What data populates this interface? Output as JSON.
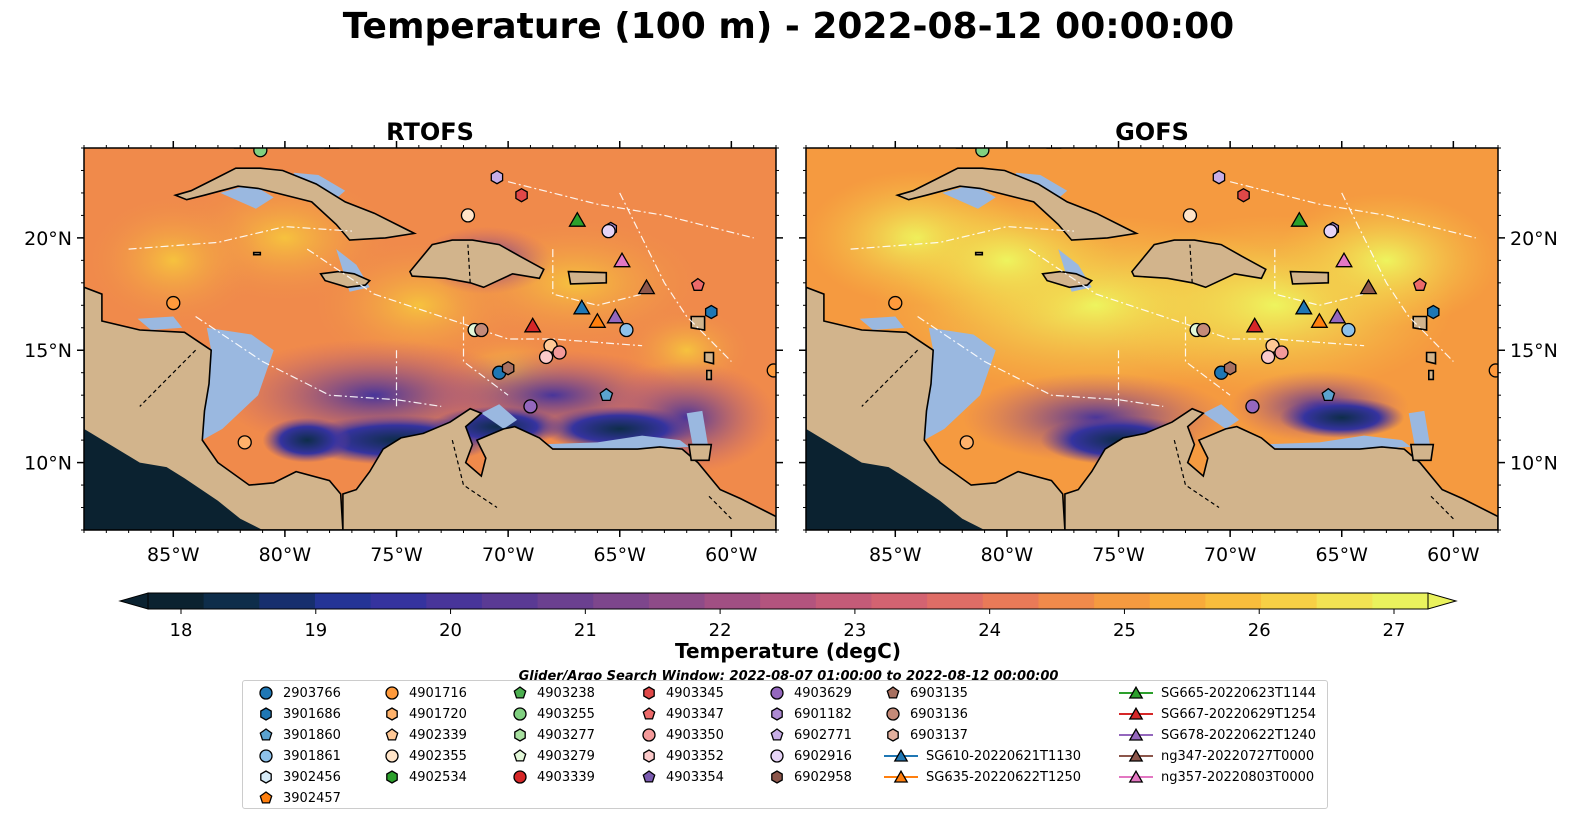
{
  "title": "Temperature (100 m) - 2022-08-12 00:00:00",
  "panels": [
    {
      "title": "RTOFS",
      "variant": "rtofs"
    },
    {
      "title": "GOFS",
      "variant": "gofs"
    }
  ],
  "map": {
    "lon_range": [
      -89,
      -58
    ],
    "lat_range": [
      7,
      24
    ],
    "lon_ticks": [
      "85°W",
      "80°W",
      "75°W",
      "70°W",
      "65°W",
      "60°W"
    ],
    "lon_tick_values": [
      -85,
      -80,
      -75,
      -70,
      -65,
      -60
    ],
    "lat_ticks": [
      "10°N",
      "15°N",
      "20°N"
    ],
    "lat_tick_values": [
      10,
      15,
      20
    ],
    "land_color": "#d2b48c",
    "shelf_color": "#9ab8e0"
  },
  "colorbar": {
    "label": "Temperature (degC)",
    "ticks": [
      "18",
      "19",
      "20",
      "21",
      "22",
      "23",
      "24",
      "25",
      "26",
      "27"
    ],
    "min": 18,
    "max": 27,
    "colors": [
      "#0b2230",
      "#0e2d4a",
      "#172f6e",
      "#243496",
      "#35339f",
      "#48359a",
      "#5a3a94",
      "#6b4090",
      "#7d468c",
      "#8e4b88",
      "#a14f83",
      "#b3547e",
      "#c45b78",
      "#d36371",
      "#df6d66",
      "#e97a58",
      "#f08a4b",
      "#f59a40",
      "#f8ab3a",
      "#f9bd3c",
      "#f7d045",
      "#f2e353",
      "#eaf25d"
    ]
  },
  "legend": {
    "title": "Glider/Argo Search Window: 2022-08-07 01:00:00 to 2022-08-12 00:00:00",
    "columns": [
      [
        {
          "label": "2903766",
          "marker": "circle",
          "color": "#1f77b4"
        },
        {
          "label": "3901686",
          "marker": "hexagon",
          "color": "#1f77b4"
        },
        {
          "label": "3901860",
          "marker": "pentagon",
          "color": "#5ba3d0"
        },
        {
          "label": "3901861",
          "marker": "circle",
          "color": "#8ec1ea"
        },
        {
          "label": "3902456",
          "marker": "hexagon",
          "color": "#d6ebf8"
        },
        {
          "label": "3902457",
          "marker": "pentagon",
          "color": "#ff7f0e"
        }
      ],
      [
        {
          "label": "4901716",
          "marker": "circle",
          "color": "#ff9a3c"
        },
        {
          "label": "4901720",
          "marker": "hexagon",
          "color": "#ffb26b"
        },
        {
          "label": "4902339",
          "marker": "pentagon",
          "color": "#ffc896"
        },
        {
          "label": "4902355",
          "marker": "circle",
          "color": "#ffe4c8"
        },
        {
          "label": "4902534",
          "marker": "hexagon",
          "color": "#2ca02c"
        }
      ],
      [
        {
          "label": "4903238",
          "marker": "pentagon",
          "color": "#4caf50"
        },
        {
          "label": "4903255",
          "marker": "circle",
          "color": "#80d080"
        },
        {
          "label": "4903277",
          "marker": "hexagon",
          "color": "#a8e0a0"
        },
        {
          "label": "4903279",
          "marker": "pentagon",
          "color": "#e2f7d8"
        },
        {
          "label": "4903339",
          "marker": "circle",
          "color": "#d62728"
        }
      ],
      [
        {
          "label": "4903345",
          "marker": "hexagon",
          "color": "#e04848"
        },
        {
          "label": "4903347",
          "marker": "pentagon",
          "color": "#ec6a6a"
        },
        {
          "label": "4903350",
          "marker": "circle",
          "color": "#f49a9a"
        },
        {
          "label": "4903352",
          "marker": "hexagon",
          "color": "#fbcaca"
        },
        {
          "label": "4903354",
          "marker": "pentagon",
          "color": "#7b5bb0"
        }
      ],
      [
        {
          "label": "4903629",
          "marker": "circle",
          "color": "#9467bd"
        },
        {
          "label": "6901182",
          "marker": "hexagon",
          "color": "#ad8ad2"
        },
        {
          "label": "6902771",
          "marker": "pentagon",
          "color": "#c8aee6"
        },
        {
          "label": "6902916",
          "marker": "circle",
          "color": "#e6d4f6"
        },
        {
          "label": "6902958",
          "marker": "hexagon",
          "color": "#8c564b"
        }
      ],
      [
        {
          "label": "6903135",
          "marker": "pentagon",
          "color": "#a87060"
        },
        {
          "label": "6903136",
          "marker": "circle",
          "color": "#c48a78"
        },
        {
          "label": "6903137",
          "marker": "hexagon",
          "color": "#e2b09e"
        },
        {
          "label": "SG610-20220621T1130",
          "marker": "triangle-line",
          "color": "#1f77b4"
        },
        {
          "label": "SG635-20220622T1250",
          "marker": "triangle-line",
          "color": "#ff7f0e"
        }
      ],
      [
        {
          "label": "SG665-20220623T1144",
          "marker": "triangle-line",
          "color": "#2ca02c"
        },
        {
          "label": "SG667-20220629T1254",
          "marker": "triangle-line",
          "color": "#d62728"
        },
        {
          "label": "SG678-20220622T1240",
          "marker": "triangle-line",
          "color": "#9467bd"
        },
        {
          "label": "ng347-20220727T0000",
          "marker": "triangle-line",
          "color": "#8c564b"
        },
        {
          "label": "ng357-20220803T0000",
          "marker": "triangle-line",
          "color": "#e377c2"
        }
      ]
    ]
  },
  "platforms": [
    {
      "lon": -85,
      "lat": 17.1,
      "marker": "circle",
      "color": "#ff9a3c"
    },
    {
      "lon": -81.8,
      "lat": 10.9,
      "marker": "circle",
      "color": "#ffb26b"
    },
    {
      "lon": -71.5,
      "lat": 15.9,
      "marker": "circle",
      "color": "#e2f7d8"
    },
    {
      "lon": -71.2,
      "lat": 15.9,
      "marker": "circle",
      "color": "#c48a78"
    },
    {
      "lon": -70.4,
      "lat": 14.0,
      "marker": "circle",
      "color": "#1f77b4"
    },
    {
      "lon": -70.0,
      "lat": 14.2,
      "marker": "hexagon",
      "color": "#a87060"
    },
    {
      "lon": -69.0,
      "lat": 12.5,
      "marker": "circle",
      "color": "#9467bd"
    },
    {
      "lon": -68.1,
      "lat": 15.2,
      "marker": "circle",
      "color": "#ffc896"
    },
    {
      "lon": -67.7,
      "lat": 14.9,
      "marker": "circle",
      "color": "#f49a9a"
    },
    {
      "lon": -68.3,
      "lat": 14.7,
      "marker": "circle",
      "color": "#fbcaca"
    },
    {
      "lon": -70.5,
      "lat": 22.7,
      "marker": "hexagon",
      "color": "#c8aee6"
    },
    {
      "lon": -69.4,
      "lat": 21.9,
      "marker": "hexagon",
      "color": "#e04848"
    },
    {
      "lon": -71.8,
      "lat": 21.0,
      "marker": "circle",
      "color": "#ffe4c8"
    },
    {
      "lon": -65.4,
      "lat": 20.4,
      "marker": "hexagon",
      "color": "#ad8ad2"
    },
    {
      "lon": -65.5,
      "lat": 20.3,
      "marker": "circle",
      "color": "#e6d4f6"
    },
    {
      "lon": -61.5,
      "lat": 17.9,
      "marker": "pentagon",
      "color": "#ec6a6a"
    },
    {
      "lon": -60.9,
      "lat": 16.7,
      "marker": "hexagon",
      "color": "#1f77b4"
    },
    {
      "lon": -64.7,
      "lat": 15.9,
      "marker": "circle",
      "color": "#8ec1ea"
    },
    {
      "lon": -65.6,
      "lat": 13.0,
      "marker": "pentagon",
      "color": "#5ba3d0"
    },
    {
      "lon": -58.1,
      "lat": 14.1,
      "marker": "circle",
      "color": "#ff9a3c"
    },
    {
      "lon": -81.1,
      "lat": 23.9,
      "marker": "circle",
      "color": "#80d080"
    },
    {
      "lon": -66.9,
      "lat": 20.8,
      "marker": "triangle",
      "color": "#2ca02c"
    },
    {
      "lon": -66.7,
      "lat": 16.9,
      "marker": "triangle",
      "color": "#1f77b4"
    },
    {
      "lon": -68.9,
      "lat": 16.1,
      "marker": "triangle",
      "color": "#d62728"
    },
    {
      "lon": -66.0,
      "lat": 16.3,
      "marker": "triangle",
      "color": "#ff7f0e"
    },
    {
      "lon": -65.2,
      "lat": 16.5,
      "marker": "triangle",
      "color": "#9467bd"
    },
    {
      "lon": -63.8,
      "lat": 17.8,
      "marker": "triangle",
      "color": "#8c564b"
    },
    {
      "lon": -64.9,
      "lat": 19.0,
      "marker": "triangle",
      "color": "#e377c2"
    }
  ]
}
